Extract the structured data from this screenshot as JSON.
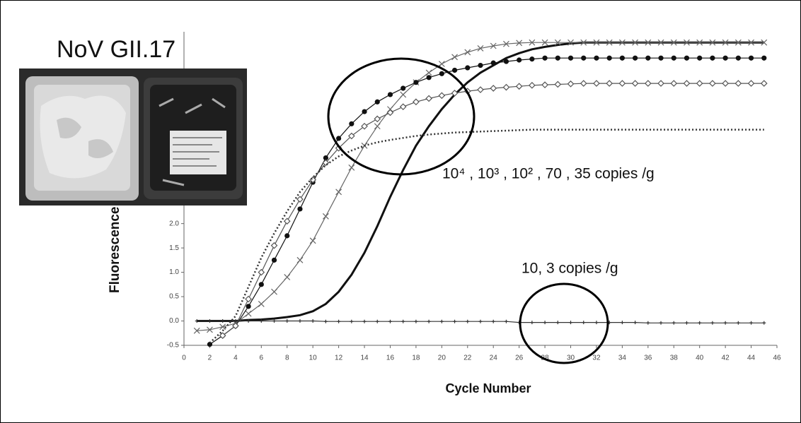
{
  "chart_data": {
    "type": "line",
    "title": "NoV GII.17",
    "xlabel": "Cycle Number",
    "ylabel": "Fluorescence",
    "annotations": [
      "10⁴ , 10³ , 10² , 70 , 35 copies /g",
      "10, 3 copies /g"
    ],
    "x": [
      1,
      2,
      3,
      4,
      5,
      6,
      7,
      8,
      9,
      10,
      11,
      12,
      13,
      14,
      15,
      16,
      17,
      18,
      19,
      20,
      21,
      22,
      23,
      24,
      25,
      26,
      27,
      28,
      29,
      30,
      31,
      32,
      33,
      34,
      35,
      36,
      37,
      38,
      39,
      40,
      41,
      42,
      43,
      44,
      45
    ],
    "xlim": [
      0,
      46
    ],
    "xticks": [
      0,
      2,
      4,
      6,
      8,
      10,
      12,
      14,
      16,
      18,
      20,
      22,
      24,
      26,
      28,
      30,
      32,
      34,
      36,
      38,
      40,
      42,
      44,
      46
    ],
    "ylim": [
      -0.5,
      5.94
    ],
    "yticks": [
      -0.5,
      {
        "value": 0,
        "label": "0.0"
      },
      0.5,
      {
        "value": 1,
        "label": "1.0"
      },
      1.5,
      {
        "value": 2,
        "label": "2.0"
      }
    ],
    "series": [
      {
        "color": "#111111",
        "marker": "none",
        "line_style": "solid",
        "line_width": 3,
        "values": [
          0,
          0,
          0,
          0,
          0.02,
          0.03,
          0.05,
          0.08,
          0.12,
          0.2,
          0.35,
          0.6,
          0.95,
          1.4,
          1.95,
          2.55,
          3.1,
          3.6,
          4.0,
          4.35,
          4.65,
          4.9,
          5.1,
          5.25,
          5.4,
          5.5,
          5.58,
          5.63,
          5.67,
          5.7,
          5.72,
          5.72,
          5.72,
          5.72,
          5.72,
          5.72,
          5.72,
          5.72,
          5.72,
          5.72,
          5.72,
          5.72,
          5.72,
          5.72,
          5.72
        ]
      },
      {
        "color": "#666666",
        "marker": "x",
        "line_style": "solid",
        "line_width": 1.2,
        "values": [
          -0.2,
          -0.18,
          -0.12,
          -0.05,
          0.15,
          0.35,
          0.6,
          0.9,
          1.25,
          1.65,
          2.15,
          2.65,
          3.15,
          3.6,
          4.0,
          4.35,
          4.65,
          4.9,
          5.1,
          5.28,
          5.42,
          5.52,
          5.6,
          5.65,
          5.69,
          5.71,
          5.72,
          5.72,
          5.72,
          5.72,
          5.72,
          5.72,
          5.72,
          5.72,
          5.72,
          5.72,
          5.72,
          5.72,
          5.72,
          5.72,
          5.72,
          5.72,
          5.72,
          5.72,
          5.72
        ]
      },
      {
        "color": "#111111",
        "marker": "dot",
        "line_style": "solid",
        "line_width": 1.2,
        "values": [
          null,
          -0.48,
          -0.3,
          -0.1,
          0.3,
          0.75,
          1.25,
          1.75,
          2.3,
          2.85,
          3.35,
          3.75,
          4.05,
          4.3,
          4.5,
          4.65,
          4.78,
          4.9,
          5.0,
          5.08,
          5.15,
          5.2,
          5.25,
          5.3,
          5.33,
          5.36,
          5.38,
          5.4,
          5.4,
          5.4,
          5.4,
          5.4,
          5.4,
          5.4,
          5.4,
          5.4,
          5.4,
          5.4,
          5.4,
          5.4,
          5.4,
          5.4,
          5.4,
          5.4,
          5.4
        ]
      },
      {
        "color": "#555555",
        "marker": "diamond",
        "line_style": "solid",
        "line_width": 1.2,
        "values": [
          null,
          null,
          -0.3,
          -0.1,
          0.45,
          1.0,
          1.55,
          2.05,
          2.5,
          2.9,
          3.25,
          3.55,
          3.8,
          4.0,
          4.15,
          4.28,
          4.4,
          4.5,
          4.57,
          4.63,
          4.68,
          4.72,
          4.75,
          4.78,
          4.8,
          4.82,
          4.84,
          4.85,
          4.86,
          4.87,
          4.88,
          4.88,
          4.88,
          4.88,
          4.88,
          4.88,
          4.88,
          4.88,
          4.88,
          4.88,
          4.88,
          4.88,
          4.88,
          4.88,
          4.88
        ]
      },
      {
        "color": "#333333",
        "marker": "none",
        "line_style": "dotted",
        "line_width": 2.5,
        "values": [
          null,
          -0.45,
          -0.2,
          0.1,
          0.7,
          1.3,
          1.8,
          2.25,
          2.65,
          2.95,
          3.2,
          3.38,
          3.5,
          3.6,
          3.67,
          3.72,
          3.76,
          3.8,
          3.83,
          3.85,
          3.87,
          3.88,
          3.89,
          3.9,
          3.91,
          3.92,
          3.93,
          3.93,
          3.93,
          3.93,
          3.93,
          3.93,
          3.93,
          3.93,
          3.93,
          3.93,
          3.93,
          3.93,
          3.93,
          3.93,
          3.93,
          3.93,
          3.93,
          3.93,
          3.93
        ]
      },
      {
        "color": "#333333",
        "marker": "plus",
        "line_style": "solid",
        "line_width": 1.2,
        "values": [
          0,
          0,
          0,
          0,
          0,
          0,
          0,
          0,
          0,
          0,
          -0.01,
          -0.01,
          -0.01,
          -0.01,
          -0.01,
          -0.01,
          -0.01,
          -0.01,
          -0.01,
          -0.01,
          -0.01,
          -0.01,
          -0.01,
          -0.01,
          -0.01,
          -0.03,
          -0.03,
          -0.03,
          -0.03,
          -0.03,
          -0.03,
          -0.03,
          -0.03,
          -0.03,
          -0.03,
          -0.04,
          -0.04,
          -0.04,
          -0.04,
          -0.04,
          -0.04,
          -0.04,
          -0.04,
          -0.04,
          -0.04
        ]
      }
    ]
  }
}
